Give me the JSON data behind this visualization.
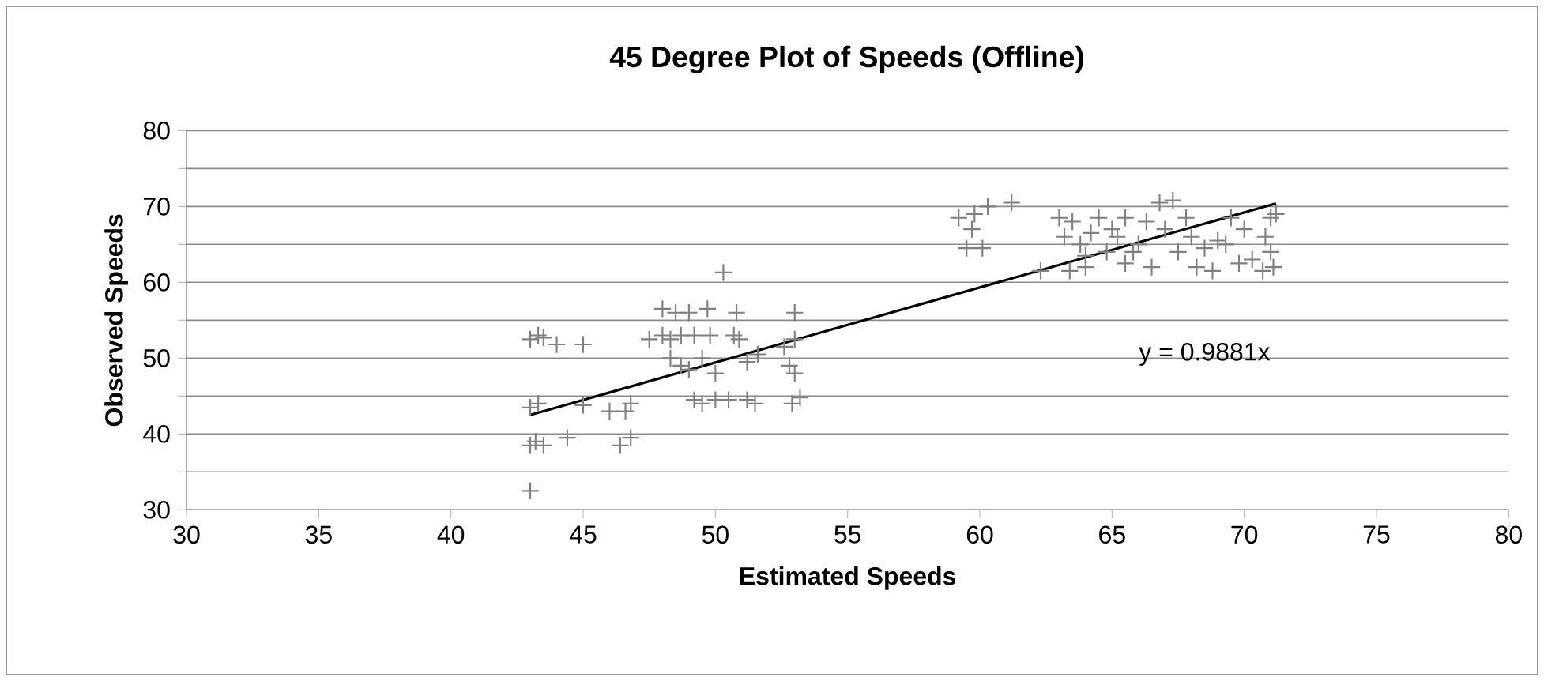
{
  "chart_data": {
    "type": "scatter",
    "title": "45 Degree Plot of Speeds (Offline)",
    "xlabel": "Estimated Speeds",
    "ylabel": "Observed Speeds",
    "xlim": [
      30,
      80
    ],
    "xticks": [
      30,
      35,
      40,
      45,
      50,
      55,
      60,
      65,
      70,
      75,
      80
    ],
    "ylim": [
      30,
      80
    ],
    "yticks": [
      30,
      {
        "value": 35,
        "label": null
      },
      40,
      {
        "value": 45,
        "label": null
      },
      50,
      {
        "value": 55,
        "label": null
      },
      60,
      {
        "value": 65,
        "label": null
      },
      70,
      {
        "value": 75,
        "label": null
      },
      80
    ],
    "grid": "y",
    "annotations": [
      "y = 0.9881x"
    ],
    "series": [
      {
        "color": "#808080",
        "marker": "cross",
        "x": [
          43,
          43.3,
          43.5,
          44,
          45,
          43,
          43.3,
          45,
          46,
          46.6,
          46.8,
          43,
          43.2,
          43.5,
          44.4,
          46.4,
          46.8,
          43,
          48,
          48.5,
          49,
          49.7,
          50.8,
          53,
          47.5,
          48,
          48.3,
          48.7,
          49.2,
          49.8,
          50.7,
          50.9,
          52.6,
          53,
          48.3,
          48.7,
          49,
          49.5,
          50,
          51.2,
          51.6,
          52.8,
          53,
          49.2,
          49.5,
          50,
          50.5,
          51.2,
          51.5,
          52.9,
          53.2,
          50.3,
          59.2,
          59.8,
          60.3,
          61.2,
          59.7,
          59.5,
          60.1,
          62.3,
          63,
          63.5,
          63.2,
          63.8,
          64,
          63.4,
          64.5,
          65,
          65.5,
          65.2,
          64.8,
          65.5,
          66,
          66.3,
          66.8,
          67.3,
          67,
          67.5,
          66.5,
          68,
          68.5,
          68.2,
          69,
          69.3,
          69.5,
          70,
          70.3,
          70.8,
          71,
          71.2,
          71,
          71.1,
          70.7,
          64.2,
          65.8,
          67.8,
          69.8,
          68.8,
          64
        ],
        "values": [
          52.5,
          53,
          52.7,
          51.8,
          51.8,
          43.5,
          44,
          43.8,
          43,
          43,
          44,
          38.5,
          39,
          38.5,
          39.5,
          38.5,
          39.5,
          32.5,
          56.5,
          56,
          56,
          56.5,
          56,
          56,
          52.5,
          53,
          52.5,
          53,
          53,
          53,
          53,
          52.5,
          51.5,
          52.5,
          50,
          49,
          48.5,
          50,
          48,
          49.5,
          50.5,
          49,
          48,
          44.5,
          44,
          44.5,
          44.5,
          44.5,
          44,
          44,
          44.8,
          61.3,
          68.5,
          69,
          70,
          70.5,
          67,
          64.5,
          64.5,
          61.5,
          68.5,
          68,
          66,
          65,
          63.5,
          61.5,
          68.5,
          67,
          68.5,
          66,
          64,
          62.5,
          65,
          68,
          70.5,
          70.8,
          67,
          64,
          62,
          66,
          64.5,
          62,
          65.5,
          65,
          68.5,
          67,
          63,
          66,
          68.5,
          69,
          64,
          62,
          61.5,
          66.5,
          64,
          68.5,
          62.5,
          61.5,
          62
        ]
      },
      {
        "type": "line",
        "color": "#000000",
        "x": [
          43,
          71.2
        ],
        "values": [
          42.5,
          70.4
        ],
        "marker": "none"
      }
    ]
  }
}
